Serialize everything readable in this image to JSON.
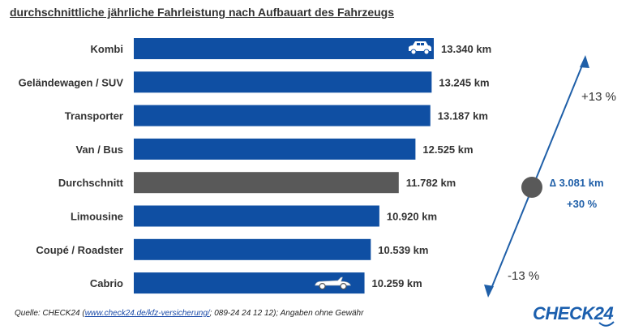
{
  "title": "durchschnittliche jährliche Fahrleistung nach Aufbauart des Fahrzeugs",
  "chart_data": {
    "type": "bar",
    "orientation": "horizontal",
    "categories": [
      "Kombi",
      "Geländewagen / SUV",
      "Transporter",
      "Van / Bus",
      "Durchschnitt",
      "Limousine",
      "Coupé / Roadster",
      "Cabrio"
    ],
    "values": [
      13340,
      13245,
      13187,
      12525,
      11782,
      10920,
      10539,
      10259
    ],
    "value_labels": [
      "13.340 km",
      "13.245 km",
      "13.187 km",
      "12.525 km",
      "11.782 km",
      "10.920 km",
      "10.539 km",
      "10.259 km"
    ],
    "highlight_category": "Durchschnitt",
    "colors": {
      "bar": "#0f4fa3",
      "highlight": "#595959",
      "arrow": "#1f5fa8",
      "text": "#333333"
    },
    "annotations": {
      "upper": "+13 %",
      "lower": "-13 %",
      "delta": "∆ 3.081 km",
      "delta_pct": "+30 %"
    },
    "icons": {
      "Kombi": "car-icon",
      "Cabrio": "convertible-icon"
    },
    "grid": false,
    "legend": "none"
  },
  "source": {
    "prefix": "Quelle: CHECK24 (",
    "link": "www.check24.de/kfz-versicherung/",
    "suffix": "; 089-24 24 12 12); Angaben ohne Gewähr"
  },
  "logo": "CHECK24"
}
